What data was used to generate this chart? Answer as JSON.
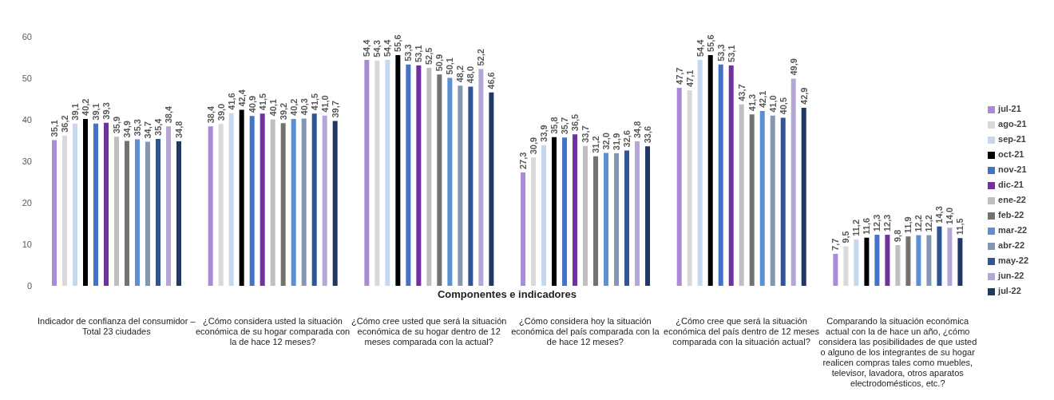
{
  "chart_data": {
    "type": "bar",
    "xlabel": "Componentes e indicadores",
    "categories": [
      "Indicador de confianza del consumidor – Total 23 ciudades",
      "¿Cómo considera usted la situación económica de su hogar comparada con la de hace 12 meses?",
      "¿Cómo cree usted que será la situación económica de su hogar dentro de 12 meses comparada con la actual?",
      "¿Cómo considera hoy la situación económica del país comparada con la de hace 12 meses?",
      "¿Cómo cree que será la situación económica del país dentro de 12 meses comparada con la situación actual?",
      "Comparando la situación económica actual con la de hace un año, ¿cómo considera las posibilidades de que usted o alguno de los integrantes de su hogar realicen compras tales como muebles, televisor, lavadora, otros aparatos electrodomésticos, etc.?"
    ],
    "series": [
      {
        "name": "jul-21",
        "color": "#a98bd8",
        "values": [
          35.1,
          38.4,
          54.4,
          27.3,
          47.7,
          7.7
        ],
        "value_labels": [
          "35,1",
          "38,4",
          "54,4",
          "27,3",
          "47,7",
          "7,7"
        ]
      },
      {
        "name": "ago-21",
        "color": "#d9d9d9",
        "values": [
          36.2,
          39.0,
          54.3,
          30.9,
          47.1,
          9.5
        ],
        "value_labels": [
          "36,2",
          "39,0",
          "54,3",
          "30,9",
          "47,1",
          "9,5"
        ]
      },
      {
        "name": "sep-21",
        "color": "#c5d8f0",
        "values": [
          39.1,
          41.6,
          54.4,
          33.9,
          54.4,
          11.2
        ],
        "value_labels": [
          "39,1",
          "41,6",
          "54,4",
          "33,9",
          "54,4",
          "11,2"
        ]
      },
      {
        "name": "oct-21",
        "color": "#000000",
        "values": [
          40.2,
          42.4,
          55.6,
          35.8,
          55.6,
          11.6
        ],
        "value_labels": [
          "40,2",
          "42,4",
          "55,6",
          "35,8",
          "55,6",
          "11,6"
        ]
      },
      {
        "name": "nov-21",
        "color": "#4472c4",
        "values": [
          39.1,
          40.9,
          53.3,
          35.7,
          53.3,
          12.3
        ],
        "value_labels": [
          "39,1",
          "40,9",
          "53,3",
          "35,7",
          "53,3",
          "12,3"
        ]
      },
      {
        "name": "dic-21",
        "color": "#7030a0",
        "values": [
          39.3,
          41.5,
          53.1,
          36.5,
          53.1,
          12.3
        ],
        "value_labels": [
          "39,3",
          "41,5",
          "53,1",
          "36,5",
          "53,1",
          "12,3"
        ]
      },
      {
        "name": "ene-22",
        "color": "#bfbfbf",
        "values": [
          35.9,
          40.1,
          52.5,
          33.7,
          43.7,
          9.8
        ],
        "value_labels": [
          "35,9",
          "40,1",
          "52,5",
          "33,7",
          "43,7",
          "9,8"
        ]
      },
      {
        "name": "feb-22",
        "color": "#767171",
        "values": [
          34.9,
          39.2,
          50.9,
          31.2,
          41.3,
          11.9
        ],
        "value_labels": [
          "34,9",
          "39,2",
          "50,9",
          "31,2",
          "41,3",
          "11,9"
        ]
      },
      {
        "name": "mar-22",
        "color": "#5b8fd6",
        "values": [
          35.3,
          40.2,
          50.1,
          32.0,
          42.1,
          12.2
        ],
        "value_labels": [
          "35,3",
          "40,2",
          "50,1",
          "32,0",
          "42,1",
          "12,2"
        ]
      },
      {
        "name": "abr-22",
        "color": "#8497b0",
        "values": [
          34.7,
          40.3,
          48.2,
          31.9,
          41.0,
          12.2
        ],
        "value_labels": [
          "34,7",
          "40,3",
          "48,2",
          "31,9",
          "41,0",
          "12,2"
        ]
      },
      {
        "name": "may-22",
        "color": "#2f5597",
        "values": [
          35.4,
          41.5,
          48.0,
          32.6,
          40.5,
          14.3
        ],
        "value_labels": [
          "35,4",
          "41,5",
          "48,0",
          "32,6",
          "40,5",
          "14,3"
        ]
      },
      {
        "name": "jun-22",
        "color": "#b4a7d6",
        "values": [
          38.4,
          41.0,
          52.2,
          34.8,
          49.9,
          14.0
        ],
        "value_labels": [
          "38,4",
          "41,0",
          "52,2",
          "34,8",
          "49,9",
          "14,0"
        ]
      },
      {
        "name": "jul-22",
        "color": "#1f3864",
        "values": [
          34.8,
          39.7,
          46.6,
          33.6,
          42.9,
          11.5
        ],
        "value_labels": [
          "34,8",
          "39,7",
          "46,6",
          "33,6",
          "42,9",
          "11,5"
        ]
      }
    ],
    "ylim": [
      0,
      60
    ],
    "yticks": [
      0,
      10,
      20,
      30,
      40,
      50,
      60
    ],
    "legend": "right"
  }
}
